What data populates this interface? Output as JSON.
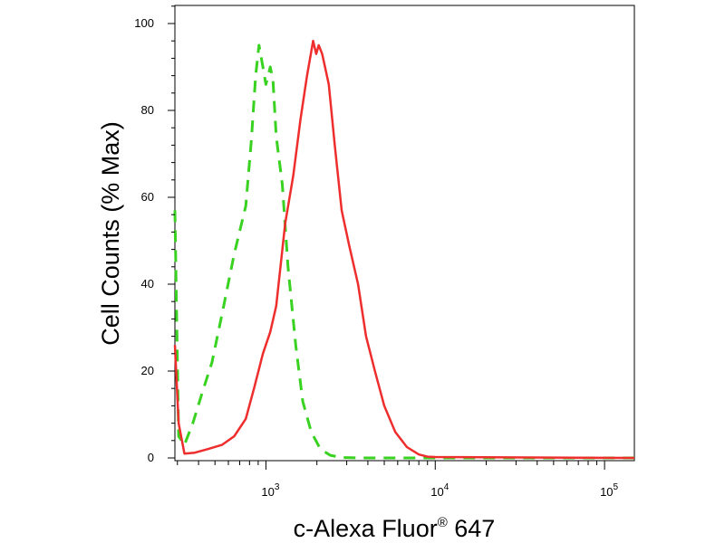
{
  "chart_data": {
    "type": "line",
    "xlabel": "c-Alexa Fluor",
    "xlabel_sup": "®",
    "xlabel_suffix": " 647",
    "ylabel": "Cell Counts (% Max)",
    "x_scale": "log",
    "xlim": [
      290,
      150000
    ],
    "ylim": [
      0,
      105
    ],
    "x_tick_labels": [
      {
        "value": 1000,
        "base": "10",
        "exp": "3"
      },
      {
        "value": 10000,
        "base": "10",
        "exp": "4"
      },
      {
        "value": 100000,
        "base": "10",
        "exp": "5"
      }
    ],
    "y_ticks": [
      0,
      20,
      40,
      60,
      80,
      100
    ],
    "y_tick_labels": [
      "0",
      "20",
      "40",
      "60",
      "80",
      "100"
    ],
    "grid": false,
    "legend": "none",
    "series": [
      {
        "color": "#39d221",
        "dash": "dashed",
        "points": [
          [
            290,
            57
          ],
          [
            305,
            5
          ],
          [
            330,
            3
          ],
          [
            370,
            8
          ],
          [
            420,
            15
          ],
          [
            480,
            22
          ],
          [
            550,
            33
          ],
          [
            650,
            47
          ],
          [
            760,
            58
          ],
          [
            820,
            73
          ],
          [
            870,
            88
          ],
          [
            910,
            95
          ],
          [
            960,
            90
          ],
          [
            1000,
            86
          ],
          [
            1060,
            90
          ],
          [
            1100,
            87
          ],
          [
            1150,
            74
          ],
          [
            1250,
            63
          ],
          [
            1350,
            44
          ],
          [
            1500,
            26
          ],
          [
            1650,
            13
          ],
          [
            1850,
            6
          ],
          [
            2100,
            2
          ],
          [
            2400,
            0.6
          ],
          [
            2800,
            0.1
          ],
          [
            3500,
            0
          ],
          [
            10000,
            0
          ],
          [
            150000,
            0
          ]
        ]
      },
      {
        "color": "#ee2d2d",
        "dash": "solid",
        "points": [
          [
            290,
            26
          ],
          [
            305,
            8
          ],
          [
            330,
            1
          ],
          [
            380,
            1.2
          ],
          [
            450,
            2
          ],
          [
            550,
            3
          ],
          [
            650,
            5
          ],
          [
            760,
            9
          ],
          [
            850,
            16
          ],
          [
            960,
            24
          ],
          [
            1060,
            29
          ],
          [
            1150,
            35
          ],
          [
            1300,
            54
          ],
          [
            1450,
            65
          ],
          [
            1600,
            78
          ],
          [
            1750,
            88
          ],
          [
            1900,
            96
          ],
          [
            1980,
            93
          ],
          [
            2050,
            95
          ],
          [
            2150,
            93
          ],
          [
            2350,
            86
          ],
          [
            2550,
            72
          ],
          [
            2800,
            57
          ],
          [
            3100,
            49
          ],
          [
            3500,
            40
          ],
          [
            3900,
            28
          ],
          [
            4400,
            20
          ],
          [
            5000,
            12
          ],
          [
            5800,
            6
          ],
          [
            6800,
            2.5
          ],
          [
            8000,
            0.8
          ],
          [
            9000,
            0.3
          ],
          [
            10000,
            0.2
          ],
          [
            150000,
            0
          ]
        ]
      }
    ]
  }
}
